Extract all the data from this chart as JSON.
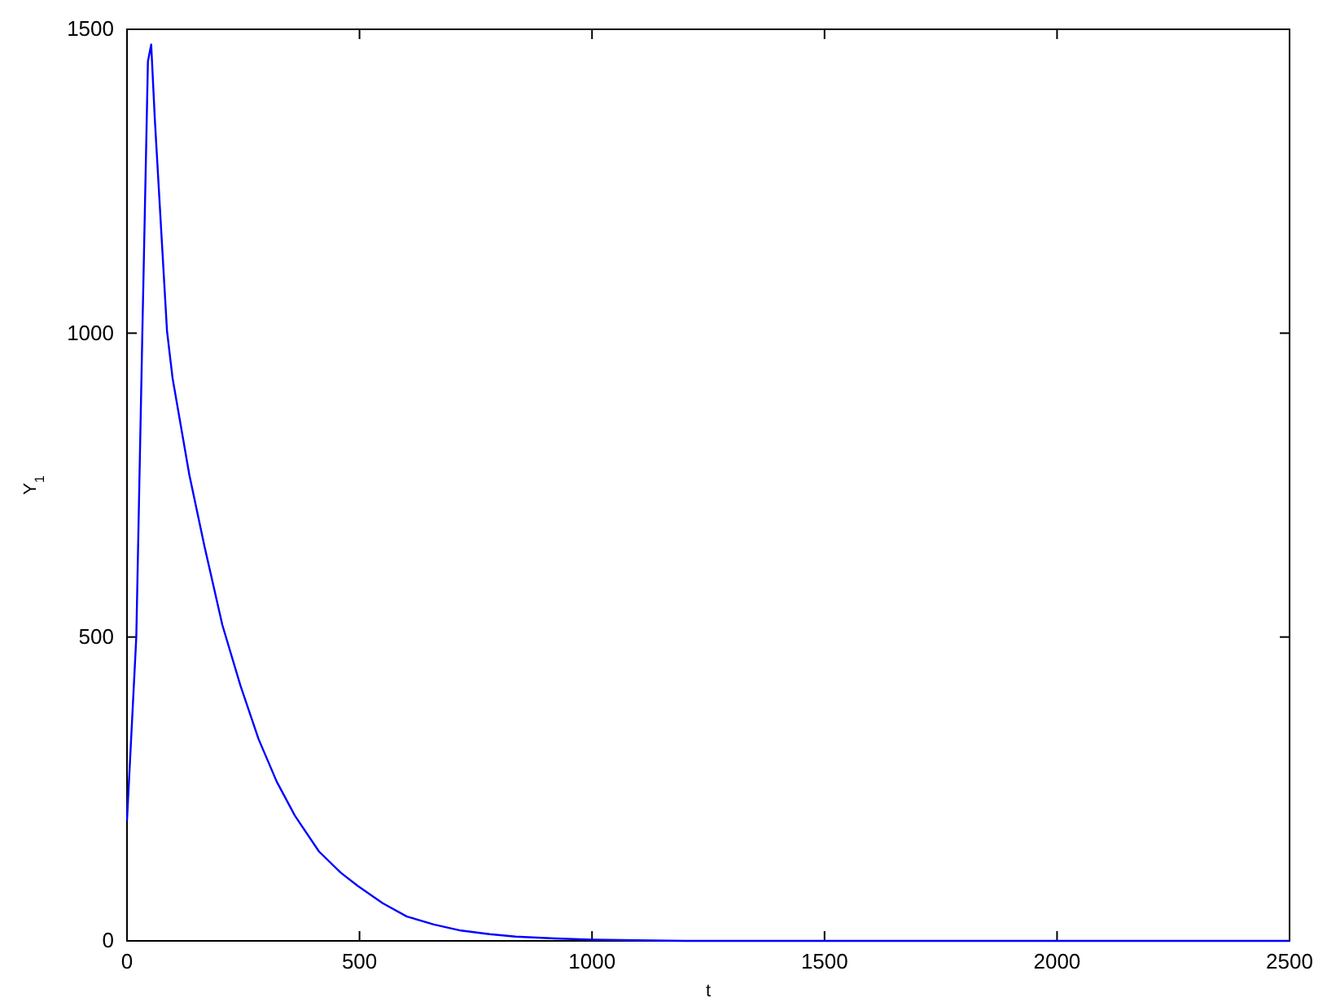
{
  "chart_data": {
    "type": "line",
    "xlabel": "t",
    "ylabel": "Y$_{1}$",
    "x": [
      0,
      20,
      33,
      45,
      52,
      60,
      75,
      86,
      98,
      134,
      167,
      205,
      244,
      283,
      322,
      361,
      413,
      460,
      497,
      550,
      602,
      660,
      718,
      780,
      836,
      920,
      998,
      1200,
      1500,
      2000,
      2500
    ],
    "series": [
      {
        "color": "#0000ff",
        "values": [
          198,
          500,
          1000,
          1447,
          1475,
          1350,
          1150,
          1004,
          926,
          767,
          648,
          520,
          420,
          332,
          262,
          206,
          147,
          112,
          90,
          62,
          40,
          27,
          17,
          11,
          7,
          4,
          2,
          0,
          0,
          0,
          0
        ]
      }
    ],
    "xlim": [
      0,
      2500
    ],
    "ylim": [
      0,
      1500
    ],
    "xticks": [
      0,
      500,
      1000,
      1500,
      2000,
      2500
    ],
    "yticks": [
      0,
      500,
      1000,
      1500
    ],
    "grid": false,
    "marker": "none",
    "line_style": "solid"
  }
}
